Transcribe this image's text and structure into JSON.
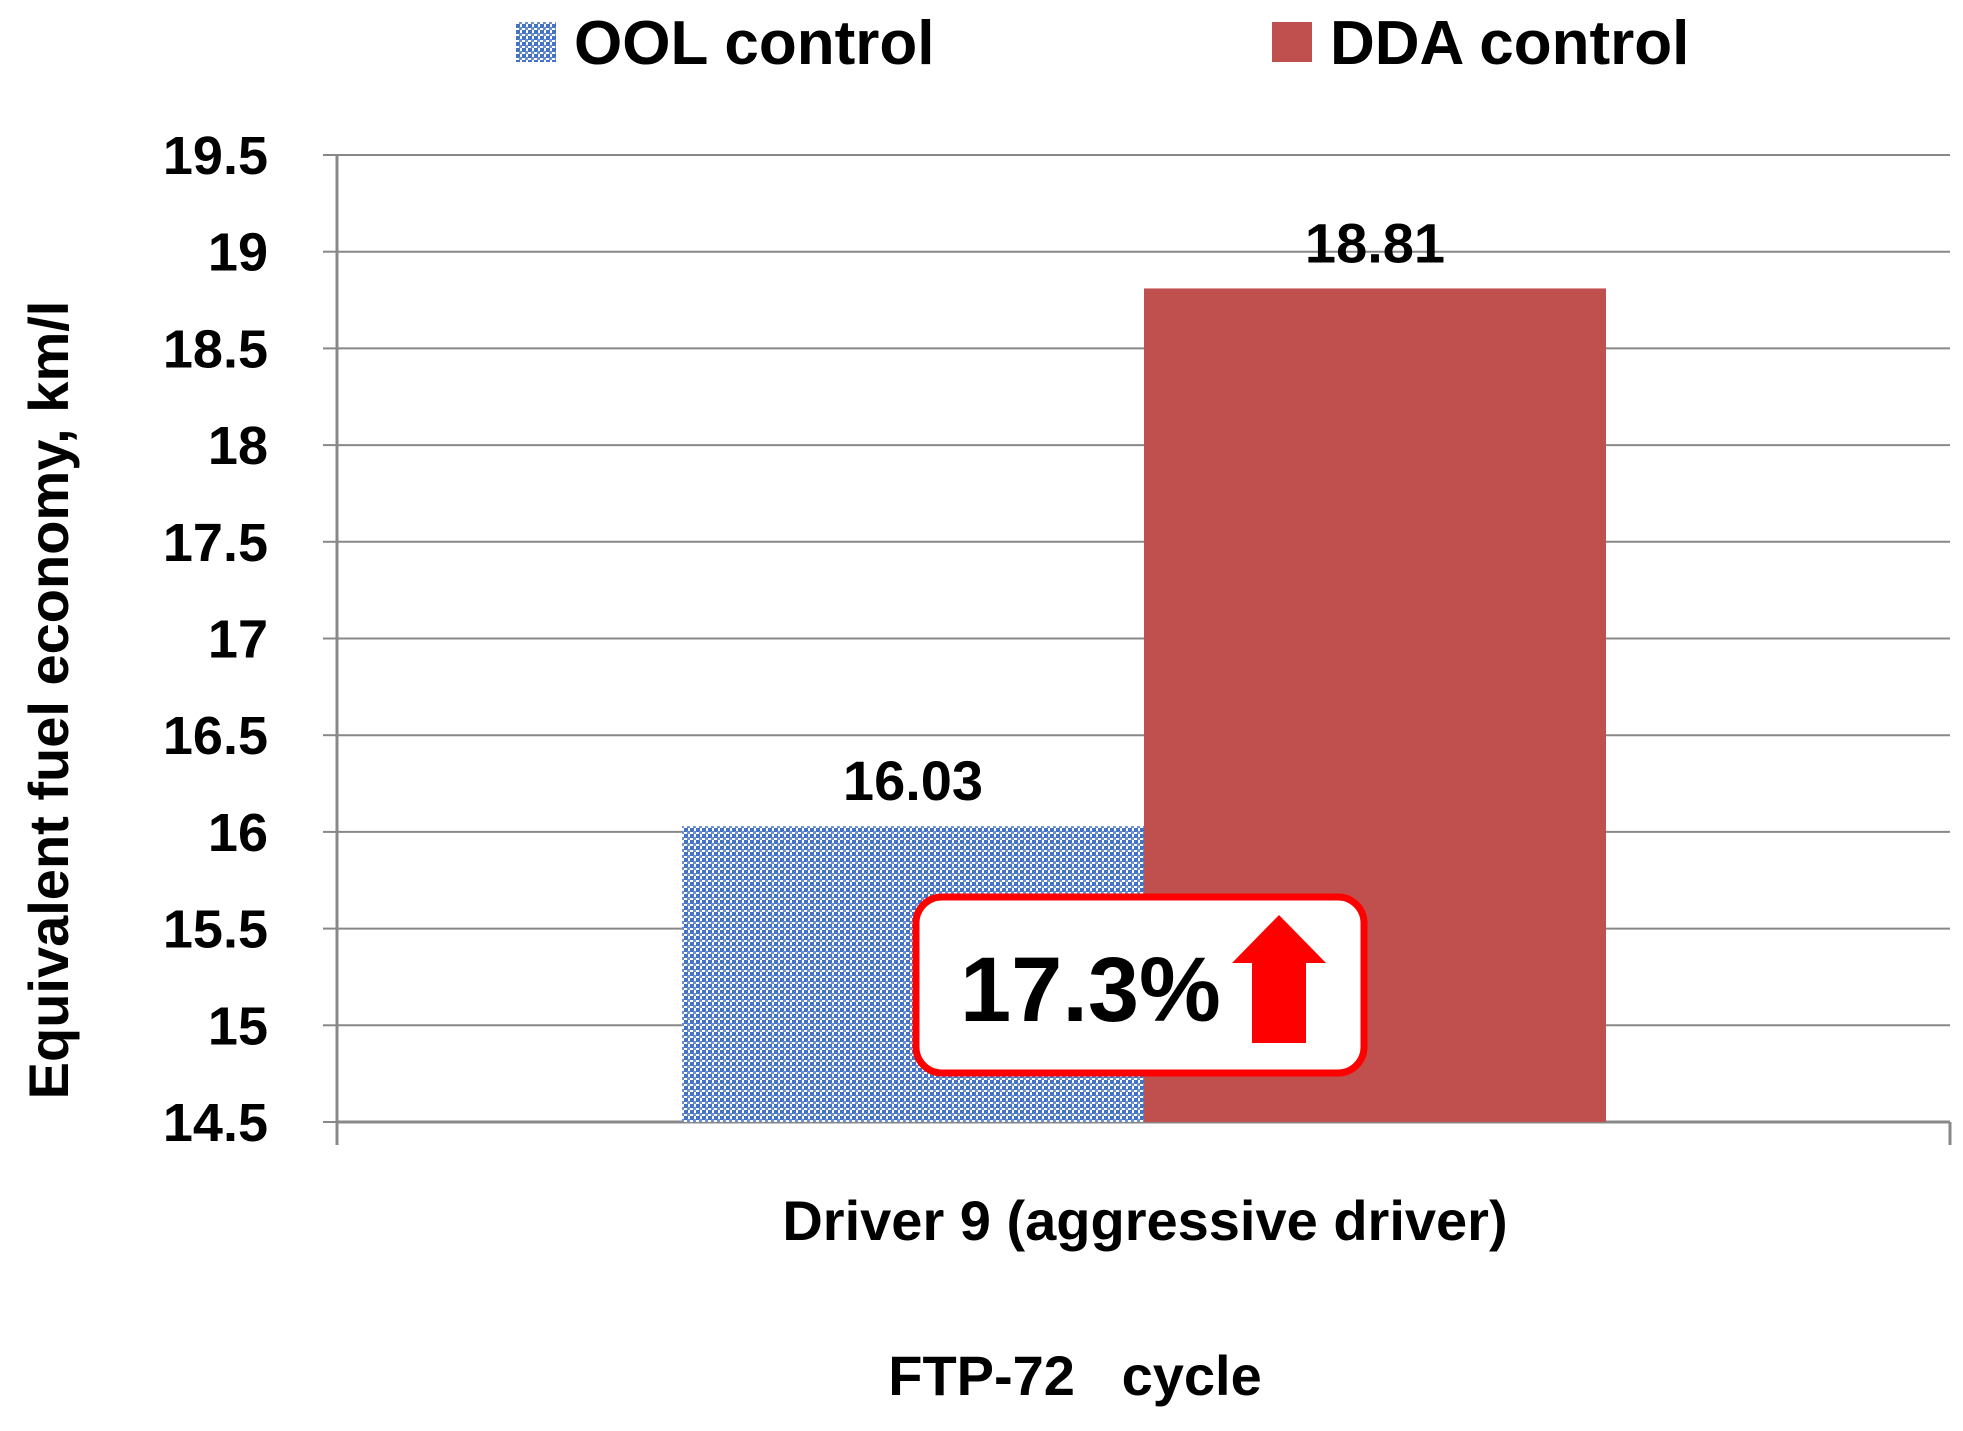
{
  "chart_data": {
    "type": "bar",
    "title": "",
    "categories": [
      "Driver 9 (aggressive driver)"
    ],
    "series": [
      {
        "name": "OOL control",
        "values": [
          16.03
        ],
        "color": "#4472C4",
        "pattern": "dotted"
      },
      {
        "name": "DDA control",
        "values": [
          18.81
        ],
        "color": "#C0504D",
        "pattern": "solid"
      }
    ],
    "xlabel": "FTP-72   cycle",
    "ylabel": "Equivalent fuel economy, km/l",
    "ylim": [
      14.5,
      19.5
    ],
    "yticks": [
      14.5,
      15,
      15.5,
      16,
      16.5,
      17,
      17.5,
      18,
      18.5,
      19,
      19.5
    ],
    "data_labels": [
      "16.03",
      "18.81"
    ],
    "grid": true,
    "legend_position": "top",
    "annotation": {
      "text": "17.3%",
      "arrow": "up",
      "color": "#FF0000"
    }
  }
}
